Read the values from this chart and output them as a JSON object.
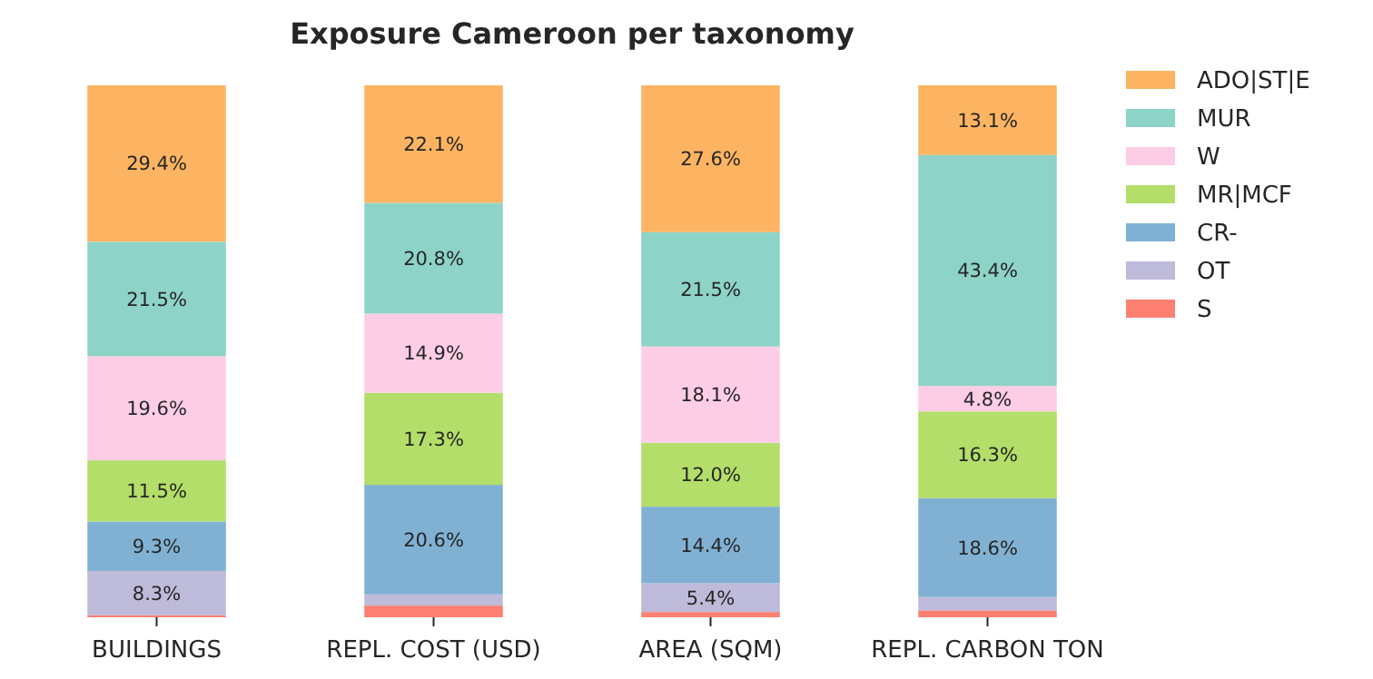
{
  "chart_data": {
    "type": "bar",
    "title": "Exposure Cameroon per taxonomy",
    "stacked": true,
    "categories": [
      "BUILDINGS",
      "REPL. COST (USD)",
      "AREA (SQM)",
      "REPL. CARBON TON"
    ],
    "ylim": [
      0,
      100
    ],
    "tick_labels": "x",
    "legend": "top right",
    "series": [
      {
        "name": "S",
        "color": "#fb8072",
        "values": [
          0.4,
          2.2,
          1.0,
          1.3
        ],
        "value_labels": [
          null,
          null,
          null,
          null
        ]
      },
      {
        "name": "OT",
        "color": "#bebada",
        "values": [
          8.3,
          2.1,
          5.4,
          2.5
        ],
        "value_labels": [
          "8.3%",
          null,
          "5.4%",
          null
        ]
      },
      {
        "name": "CR-",
        "color": "#80b1d3",
        "values": [
          9.3,
          20.6,
          14.4,
          18.6
        ],
        "value_labels": [
          "9.3%",
          "20.6%",
          "14.4%",
          "18.6%"
        ]
      },
      {
        "name": "MR|MCF",
        "color": "#b3de69",
        "values": [
          11.5,
          17.3,
          12.0,
          16.3
        ],
        "value_labels": [
          "11.5%",
          "17.3%",
          "12.0%",
          "16.3%"
        ]
      },
      {
        "name": "W",
        "color": "#fccde5",
        "values": [
          19.6,
          14.9,
          18.1,
          4.8
        ],
        "value_labels": [
          "19.6%",
          "14.9%",
          "18.1%",
          "4.8%"
        ]
      },
      {
        "name": "MUR",
        "color": "#8dd3c7",
        "values": [
          21.5,
          20.8,
          21.5,
          43.4
        ],
        "value_labels": [
          "21.5%",
          "20.8%",
          "21.5%",
          "43.4%"
        ]
      },
      {
        "name": "ADO|ST|E",
        "color": "#fdb462",
        "values": [
          29.4,
          22.1,
          27.6,
          13.1
        ],
        "value_labels": [
          "29.4%",
          "22.1%",
          "27.6%",
          "13.1%"
        ]
      }
    ]
  }
}
